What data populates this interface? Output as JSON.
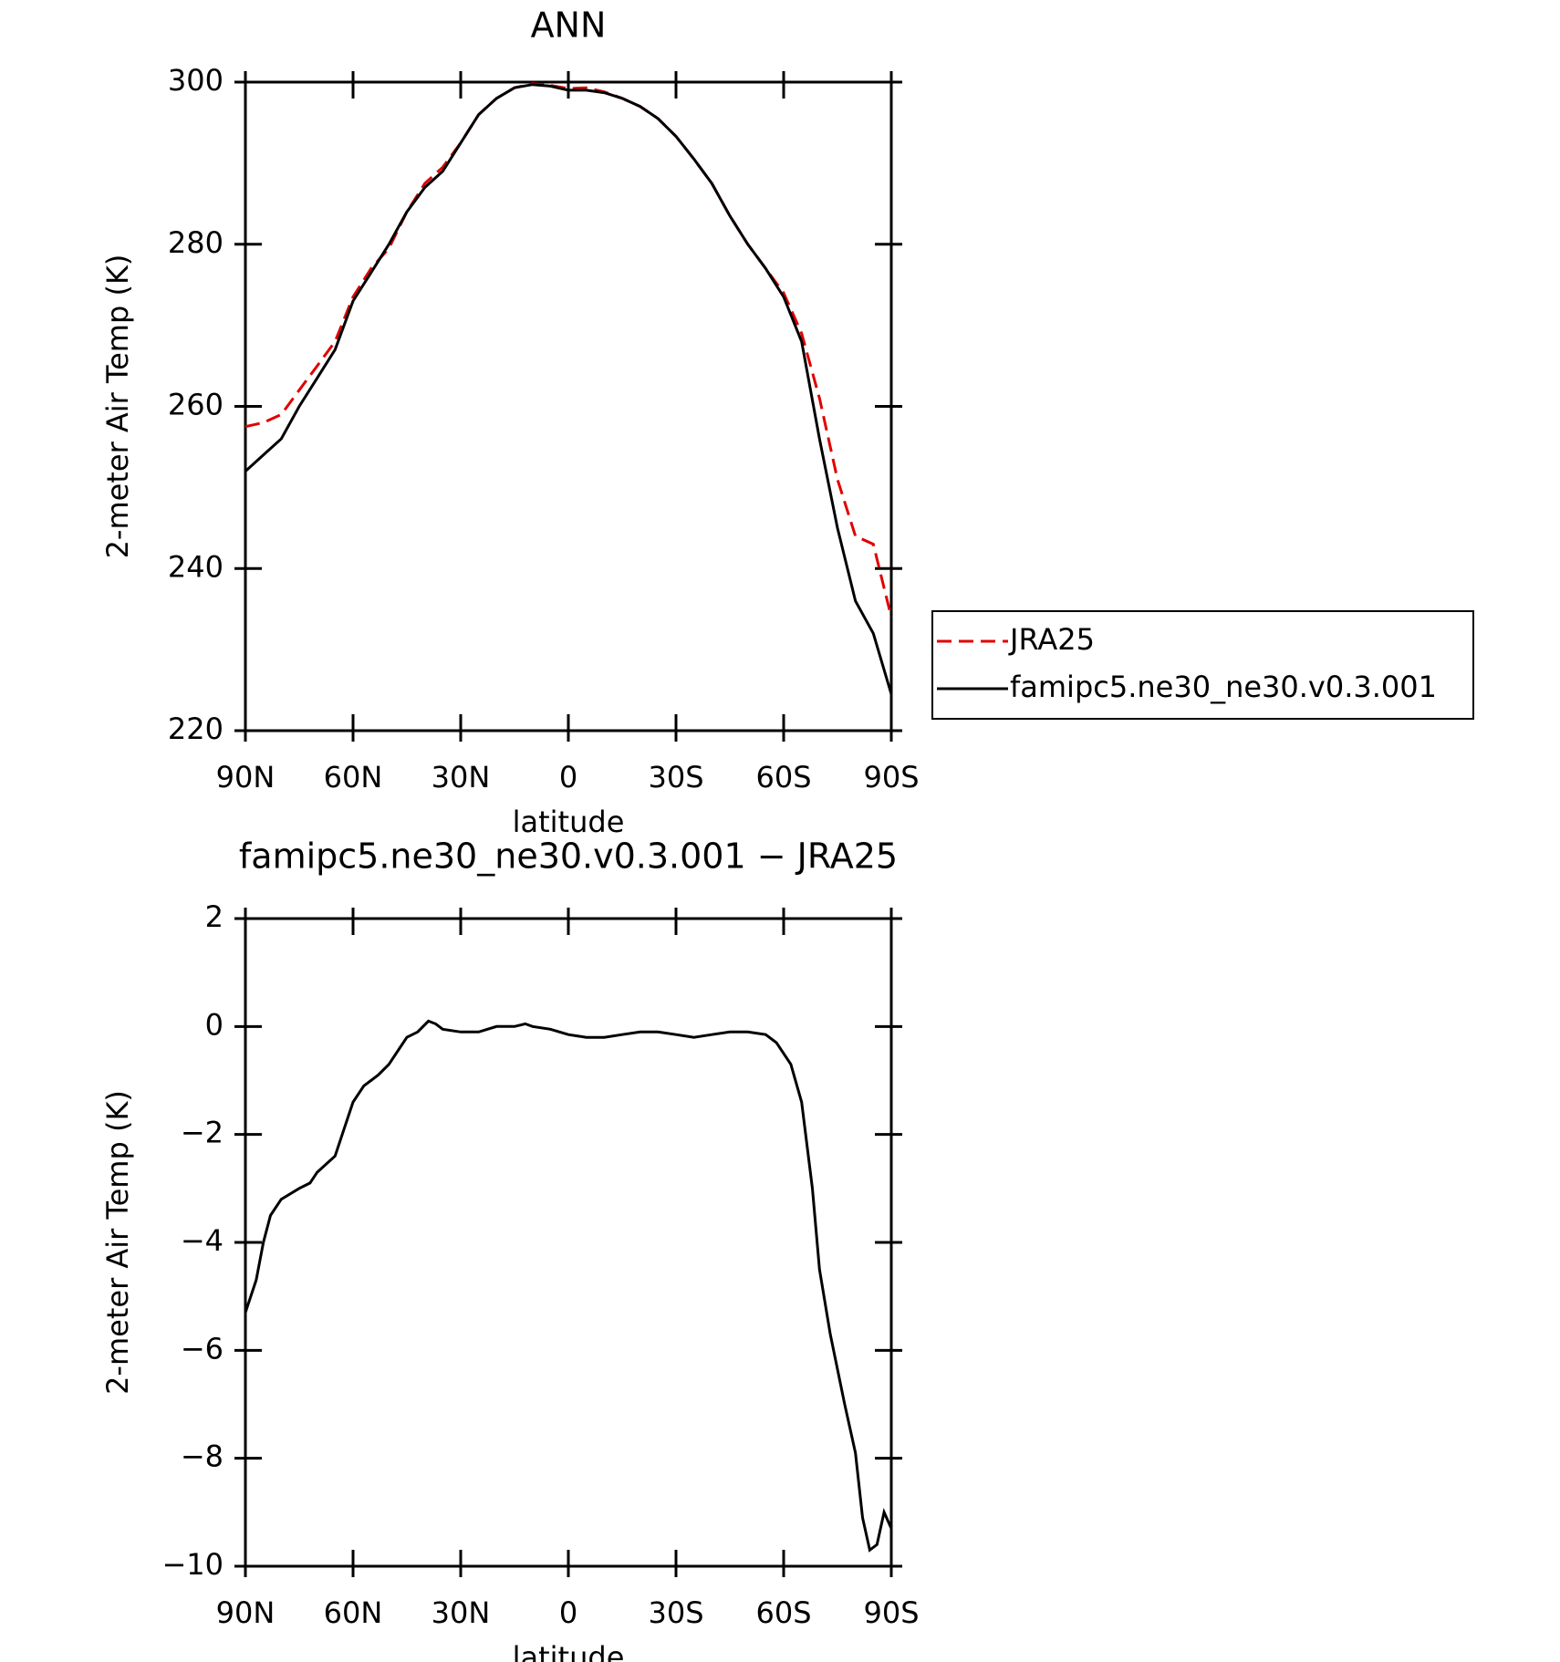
{
  "chart_data": [
    {
      "type": "line",
      "title": "ANN",
      "xlabel": "latitude",
      "ylabel": "2-meter Air Temp (K)",
      "x": [
        90,
        85,
        80,
        75,
        70,
        65,
        60,
        55,
        50,
        45,
        40,
        35,
        30,
        25,
        20,
        15,
        10,
        5,
        0,
        -5,
        -10,
        -15,
        -20,
        -25,
        -30,
        -35,
        -40,
        -45,
        -50,
        -55,
        -60,
        -65,
        -70,
        -75,
        -80,
        -85,
        -90
      ],
      "series": [
        {
          "name": "JRA25",
          "color": "#e00000",
          "dashed": true,
          "values": [
            257.5,
            258,
            259,
            262,
            265,
            268,
            273.5,
            277,
            279.5,
            284,
            287.5,
            289.5,
            292.5,
            296,
            298,
            299.3,
            299.8,
            299.6,
            299.2,
            299.3,
            298.8,
            298,
            297,
            295.5,
            293.3,
            290.5,
            287.5,
            283.5,
            280,
            277,
            274,
            269,
            261,
            251,
            244,
            243,
            234
          ]
        },
        {
          "name": "famipc5.ne30_ne30.v0.3.001",
          "color": "#000000",
          "dashed": false,
          "values": [
            252,
            254,
            256,
            260,
            263.5,
            267,
            273,
            276.5,
            280,
            284,
            287,
            289,
            292.5,
            296,
            298,
            299.3,
            299.7,
            299.5,
            299,
            299,
            298.7,
            298,
            297,
            295.5,
            293.3,
            290.5,
            287.5,
            283.5,
            280,
            277,
            273.5,
            268,
            256,
            245,
            236,
            232,
            224.5
          ]
        }
      ],
      "xlim": [
        90,
        -90
      ],
      "xticks": [
        {
          "value": 90,
          "label": "90N"
        },
        {
          "value": 60,
          "label": "60N"
        },
        {
          "value": 30,
          "label": "30N"
        },
        0,
        {
          "value": -30,
          "label": "30S"
        },
        {
          "value": -60,
          "label": "60S"
        },
        {
          "value": -90,
          "label": "90S"
        }
      ],
      "ylim": [
        220,
        300
      ],
      "yticks": [
        220,
        240,
        260,
        280,
        300
      ],
      "legend": "right"
    },
    {
      "type": "line",
      "title": "famipc5.ne30_ne30.v0.3.001 − JRA25",
      "xlabel": "latitude",
      "ylabel": "2-meter Air Temp (K)",
      "x": [
        90,
        87,
        85,
        83,
        80,
        75,
        72,
        70,
        65,
        62,
        60,
        57,
        53,
        50,
        47,
        45,
        42,
        39,
        37,
        35,
        30,
        25,
        20,
        15,
        12,
        10,
        5,
        0,
        -5,
        -10,
        -15,
        -20,
        -25,
        -30,
        -35,
        -40,
        -45,
        -50,
        -55,
        -58,
        -62,
        -65,
        -68,
        -70,
        -73,
        -77,
        -80,
        -82,
        -84,
        -86,
        -88,
        -90
      ],
      "series": [
        {
          "color": "#000000",
          "dashed": false,
          "values": [
            -5.3,
            -4.7,
            -4,
            -3.5,
            -3.2,
            -3,
            -2.9,
            -2.7,
            -2.4,
            -1.8,
            -1.4,
            -1.1,
            -0.9,
            -0.7,
            -0.4,
            -0.2,
            -0.1,
            0.1,
            0.05,
            -0.05,
            -0.1,
            -0.1,
            0,
            0,
            0.05,
            0,
            -0.05,
            -0.15,
            -0.2,
            -0.2,
            -0.15,
            -0.1,
            -0.1,
            -0.15,
            -0.2,
            -0.15,
            -0.1,
            -0.1,
            -0.15,
            -0.3,
            -0.7,
            -1.4,
            -3,
            -4.5,
            -5.7,
            -7,
            -7.9,
            -9.1,
            -9.7,
            -9.6,
            -9,
            -9.3
          ]
        }
      ],
      "xlim": [
        90,
        -90
      ],
      "xticks": [
        {
          "value": 90,
          "label": "90N"
        },
        {
          "value": 60,
          "label": "60N"
        },
        {
          "value": 30,
          "label": "30N"
        },
        0,
        {
          "value": -30,
          "label": "30S"
        },
        {
          "value": -60,
          "label": "60S"
        },
        {
          "value": -90,
          "label": "90S"
        }
      ],
      "ylim": [
        -10,
        2
      ],
      "yticks": [
        {
          "value": -10,
          "label": "−10"
        },
        {
          "value": -8,
          "label": "−8"
        },
        {
          "value": -6,
          "label": "−6"
        },
        {
          "value": -4,
          "label": "−4"
        },
        {
          "value": -2,
          "label": "−2"
        },
        0,
        2
      ]
    }
  ]
}
